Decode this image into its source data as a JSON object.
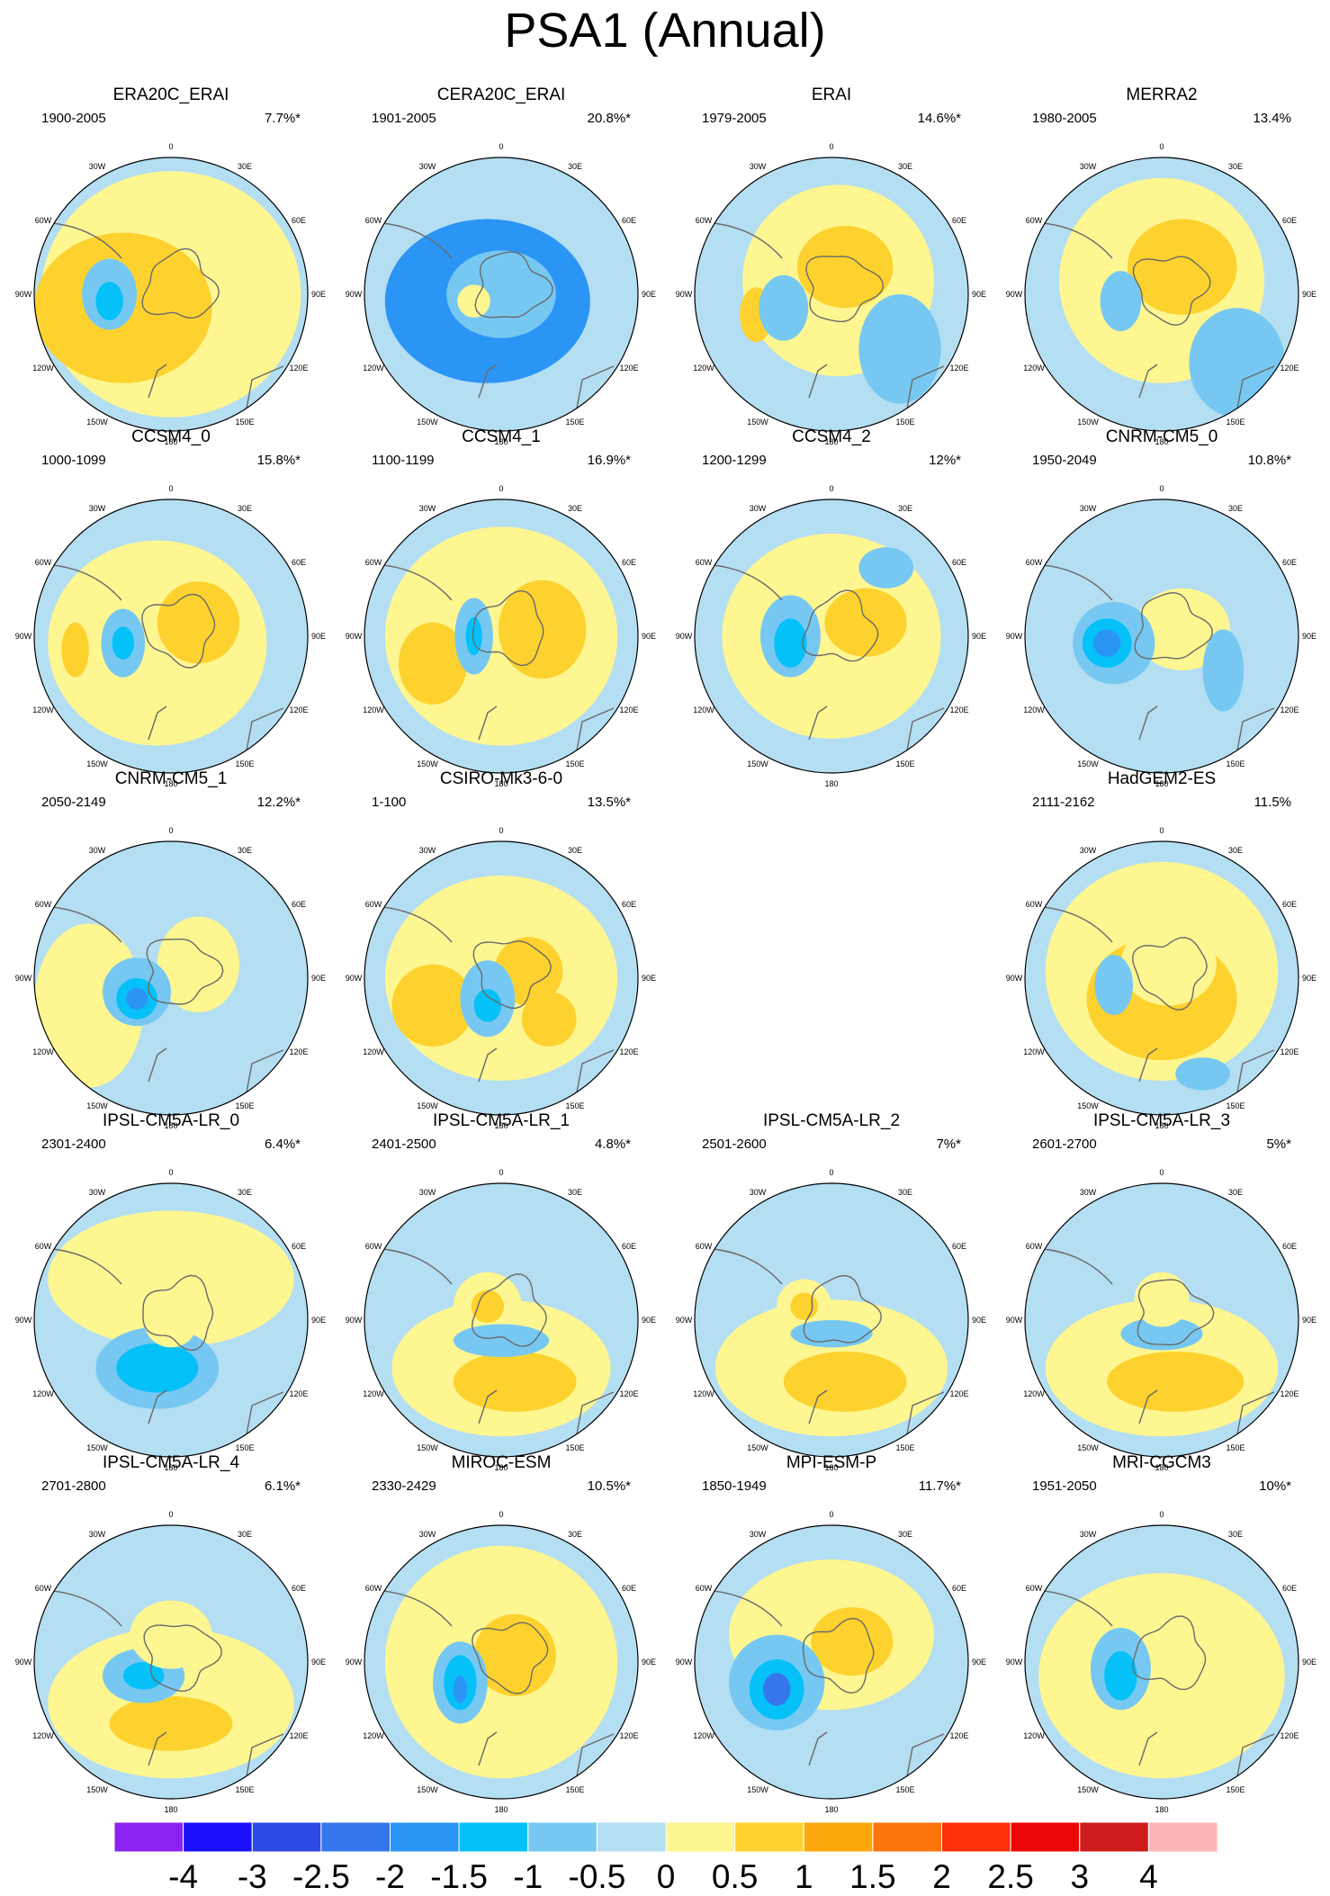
{
  "title": "PSA1 (Annual)",
  "lon_labels": [
    "0",
    "30E",
    "60E",
    "90E",
    "120E",
    "150E",
    "180",
    "150W",
    "120W",
    "90W",
    "60W",
    "30W"
  ],
  "panels": [
    {
      "name": "ERA20C_ERAI",
      "period": "1900-2005",
      "pct": "7.7%*"
    },
    {
      "name": "CERA20C_ERAI",
      "period": "1901-2005",
      "pct": "20.8%*"
    },
    {
      "name": "ERAI",
      "period": "1979-2005",
      "pct": "14.6%*"
    },
    {
      "name": "MERRA2",
      "period": "1980-2005",
      "pct": "13.4%"
    },
    {
      "name": "CCSM4_0",
      "period": "1000-1099",
      "pct": "15.8%*"
    },
    {
      "name": "CCSM4_1",
      "period": "1100-1199",
      "pct": "16.9%*"
    },
    {
      "name": "CCSM4_2",
      "period": "1200-1299",
      "pct": "12%*"
    },
    {
      "name": "CNRM-CM5_0",
      "period": "1950-2049",
      "pct": "10.8%*"
    },
    {
      "name": "CNRM-CM5_1",
      "period": "2050-2149",
      "pct": "12.2%*"
    },
    {
      "name": "CSIRO-Mk3-6-0",
      "period": "1-100",
      "pct": "13.5%*"
    },
    {
      "name": "HadGEM2-ES",
      "period": "2111-2162",
      "pct": "11.5%"
    },
    {
      "name": "IPSL-CM5A-LR_0",
      "period": "2301-2400",
      "pct": "6.4%*"
    },
    {
      "name": "IPSL-CM5A-LR_1",
      "period": "2401-2500",
      "pct": "4.8%*"
    },
    {
      "name": "IPSL-CM5A-LR_2",
      "period": "2501-2600",
      "pct": "7%*"
    },
    {
      "name": "IPSL-CM5A-LR_3",
      "period": "2601-2700",
      "pct": "5%*"
    },
    {
      "name": "IPSL-CM5A-LR_4",
      "period": "2701-2800",
      "pct": "6.1%*"
    },
    {
      "name": "MIROC-ESM",
      "period": "2330-2429",
      "pct": "10.5%*"
    },
    {
      "name": "MPI-ESM-P",
      "period": "1850-1949",
      "pct": "11.7%*"
    },
    {
      "name": "MRI-CGCM3",
      "period": "1951-2050",
      "pct": "10%*"
    }
  ],
  "colorbar": {
    "labels": [
      "-4",
      "-3",
      "-2.5",
      "-2",
      "-1.5",
      "-1",
      "-0.5",
      "0",
      "0.5",
      "1",
      "1.5",
      "2",
      "2.5",
      "3",
      "4"
    ],
    "colors": [
      "#8b22f0",
      "#1a10fb",
      "#2c4ae8",
      "#3576ec",
      "#2b95f6",
      "#05c1f8",
      "#76c8f2",
      "#b4def2",
      "#fef691",
      "#fdd22e",
      "#fca80c",
      "#fb740c",
      "#fb3008",
      "#ec0505",
      "#ce1b1b",
      "#fcb6b6"
    ]
  },
  "colors": {
    "background_field": "#b4def2",
    "neutral_positive": "#fef691",
    "coastline": "#6a6a6a"
  }
}
